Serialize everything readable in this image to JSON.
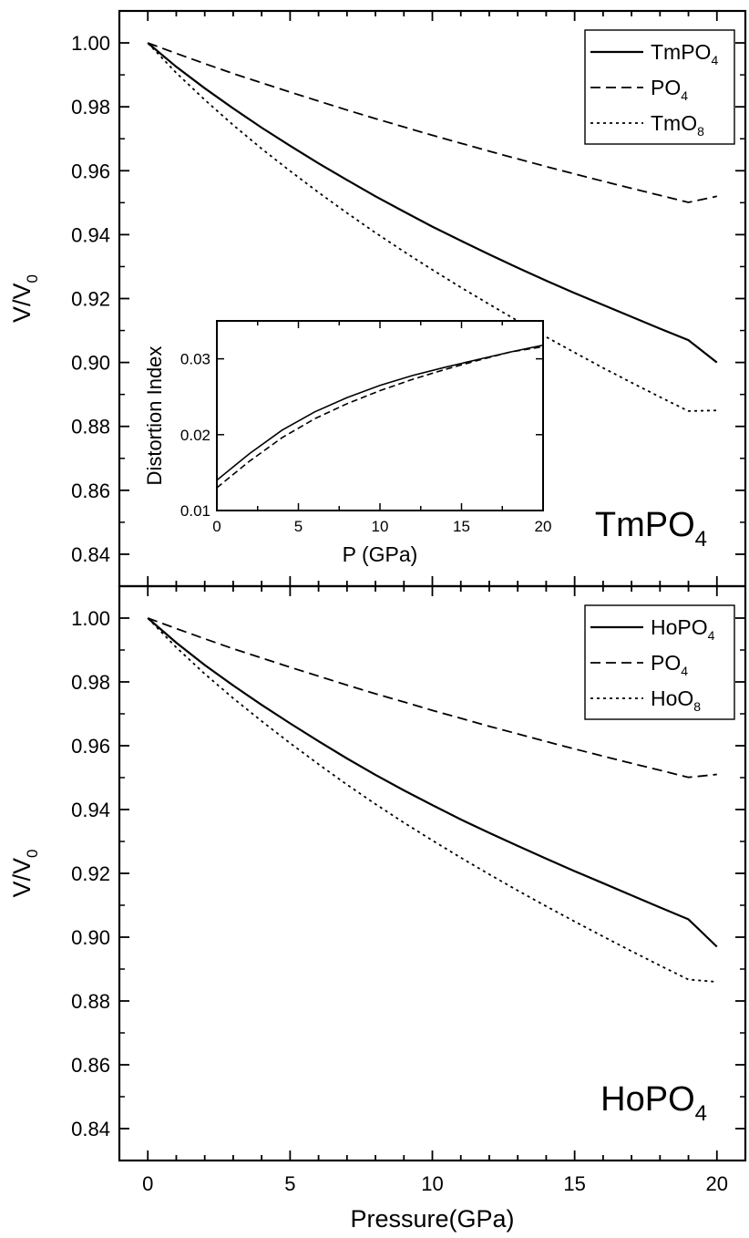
{
  "chart_data": [
    {
      "type": "line",
      "title": "",
      "panel_label": "TmPO",
      "panel_label_sub": "4",
      "xlabel": "",
      "ylabel": "V/V",
      "ylabel_sub": "0",
      "xlim": [
        -1,
        21
      ],
      "ylim": [
        0.83,
        1.01
      ],
      "yticks": [
        "1.00",
        "0.98",
        "0.96",
        "0.94",
        "0.92",
        "0.90",
        "0.88",
        "0.86",
        "0.84"
      ],
      "legend_position": "top-right",
      "grid": false,
      "x": [
        0,
        1,
        2,
        3,
        4,
        5,
        6,
        7,
        8,
        9,
        10,
        11,
        12,
        13,
        14,
        15,
        16,
        17,
        18,
        19,
        20
      ],
      "series": [
        {
          "name": "TmPO",
          "name_sub": "4",
          "style": "solid",
          "values": [
            1.0,
            0.9925,
            0.9858,
            0.9795,
            0.9735,
            0.9678,
            0.9623,
            0.9571,
            0.952,
            0.9472,
            0.9425,
            0.9381,
            0.9338,
            0.9296,
            0.9256,
            0.9217,
            0.918,
            0.9143,
            0.9106,
            0.907,
            0.9
          ]
        },
        {
          "name": "PO",
          "name_sub": "4",
          "style": "dashed",
          "values": [
            1.0,
            0.9967,
            0.9935,
            0.9904,
            0.9875,
            0.9846,
            0.9818,
            0.979,
            0.9763,
            0.9737,
            0.9711,
            0.9686,
            0.9661,
            0.9637,
            0.9613,
            0.959,
            0.9567,
            0.9545,
            0.9523,
            0.9501,
            0.952
          ]
        },
        {
          "name": "TmO",
          "name_sub": "8",
          "style": "dotted",
          "values": [
            1.0,
            0.9906,
            0.9822,
            0.9743,
            0.9669,
            0.9599,
            0.9532,
            0.9468,
            0.9406,
            0.9347,
            0.929,
            0.9235,
            0.9182,
            0.913,
            0.908,
            0.9031,
            0.8983,
            0.8937,
            0.8892,
            0.8848,
            0.885
          ]
        }
      ],
      "inset": {
        "type": "line",
        "xlabel": "P (GPa)",
        "ylabel": "Distortion Index",
        "xlim": [
          0,
          20
        ],
        "ylim": [
          0.01,
          0.035
        ],
        "xticks": [
          "0",
          "5",
          "10",
          "15",
          "20"
        ],
        "yticks": [
          "0.01",
          "0.02",
          "0.03"
        ],
        "x": [
          0,
          2,
          4,
          6,
          8,
          10,
          12,
          14,
          16,
          18,
          20
        ],
        "series": [
          {
            "style": "solid",
            "values": [
              0.014,
              0.0175,
              0.0206,
              0.023,
              0.0249,
              0.0265,
              0.0278,
              0.0289,
              0.0299,
              0.0309,
              0.0318
            ]
          },
          {
            "style": "dashed",
            "values": [
              0.013,
              0.0165,
              0.0196,
              0.0221,
              0.0241,
              0.0258,
              0.0273,
              0.0286,
              0.0298,
              0.0309,
              0.0316
            ]
          }
        ]
      }
    },
    {
      "type": "line",
      "title": "",
      "panel_label": "HoPO",
      "panel_label_sub": "4",
      "xlabel": "Pressure(GPa)",
      "ylabel": "V/V",
      "ylabel_sub": "0",
      "xlim": [
        -1,
        21
      ],
      "ylim": [
        0.83,
        1.01
      ],
      "xticks": [
        "0",
        "5",
        "10",
        "15",
        "20"
      ],
      "yticks": [
        "1.00",
        "0.98",
        "0.96",
        "0.94",
        "0.92",
        "0.90",
        "0.88",
        "0.86",
        "0.84"
      ],
      "legend_position": "top-right",
      "grid": false,
      "x": [
        0,
        1,
        2,
        3,
        4,
        5,
        6,
        7,
        8,
        9,
        10,
        11,
        12,
        13,
        14,
        15,
        16,
        17,
        18,
        19,
        20
      ],
      "series": [
        {
          "name": "HoPO",
          "name_sub": "4",
          "style": "solid",
          "values": [
            1.0,
            0.9923,
            0.9853,
            0.9789,
            0.9728,
            0.967,
            0.9614,
            0.956,
            0.9509,
            0.946,
            0.9414,
            0.9369,
            0.9327,
            0.9286,
            0.9246,
            0.9207,
            0.9169,
            0.9131,
            0.9093,
            0.9056,
            0.897
          ]
        },
        {
          "name": "PO",
          "name_sub": "4",
          "style": "dashed",
          "values": [
            1.0,
            0.9967,
            0.9935,
            0.9904,
            0.9875,
            0.9846,
            0.9818,
            0.979,
            0.9763,
            0.9737,
            0.9711,
            0.9686,
            0.9661,
            0.9637,
            0.9613,
            0.959,
            0.9567,
            0.9545,
            0.9523,
            0.9501,
            0.951
          ]
        },
        {
          "name": "HoO",
          "name_sub": "8",
          "style": "dotted",
          "values": [
            1.0,
            0.9908,
            0.9825,
            0.9749,
            0.9677,
            0.9608,
            0.9542,
            0.9478,
            0.9417,
            0.9359,
            0.9303,
            0.9249,
            0.9197,
            0.9146,
            0.9097,
            0.9049,
            0.9002,
            0.8956,
            0.8911,
            0.8867,
            0.886
          ]
        }
      ]
    }
  ]
}
